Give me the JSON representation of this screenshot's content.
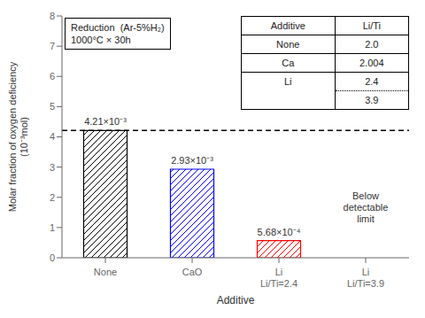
{
  "chart_data": {
    "type": "bar",
    "categories": [
      "None",
      "CaO",
      "Li\nLi/Ti=2.4",
      "Li\nLi/Ti=3.9"
    ],
    "values": [
      4.21,
      2.93,
      0.568,
      null
    ],
    "value_labels": [
      "4.21×10⁻³",
      "2.93×10⁻³",
      "5.68×10⁻⁴",
      null
    ],
    "data_labels": true,
    "colors": [
      "black",
      "blue",
      "red"
    ],
    "ylabel": "Molar fraction of oxygen deficiency\n(10⁻³mol)",
    "xlabel": "Additive",
    "ylim": [
      0,
      8
    ],
    "yticks": [
      0,
      1,
      2,
      3,
      4,
      5,
      6,
      7,
      8
    ],
    "grid": false,
    "reference_lines": [
      {
        "y": 4.21,
        "line_style": "dashed",
        "color": "black"
      }
    ],
    "annotations": [
      {
        "text": "Below\ndetectable\nlimit",
        "category": "Li\nLi/Ti=3.9"
      }
    ],
    "text_box": "Reduction  (Ar-5%H₂)\n1000°C × 30h",
    "table": [
      [
        "Additive",
        "Li/Ti"
      ],
      [
        "None",
        "2.0"
      ],
      [
        "Ca",
        "2.004"
      ],
      [
        "Li",
        "2.4"
      ],
      [
        null,
        "3.9"
      ]
    ]
  }
}
